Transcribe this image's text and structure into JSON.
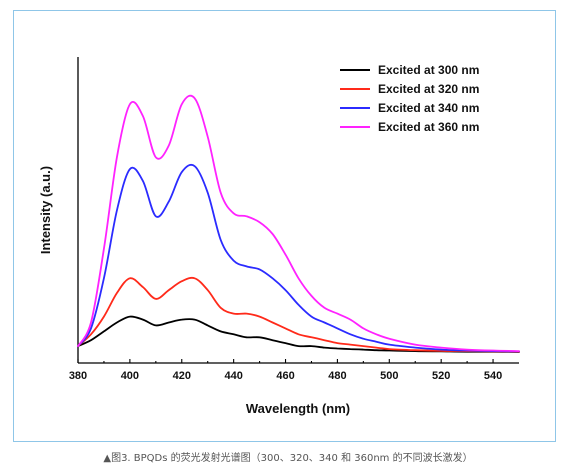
{
  "caption": "▲图3. BPQDs 的荧光发射光谱图（300、320、340 和 360nm 的不同波长激发）",
  "chart_data": {
    "type": "line",
    "title": "",
    "xlabel": "Wavelength (nm)",
    "ylabel": "Intensity (a.u.)",
    "xlim": [
      380,
      550
    ],
    "ylim": [
      0,
      1
    ],
    "x_ticks": [
      380,
      400,
      420,
      440,
      460,
      480,
      500,
      520,
      540
    ],
    "y_ticks": [],
    "grid": false,
    "legend_position": "top-right",
    "x": [
      380,
      385,
      390,
      395,
      400,
      405,
      410,
      415,
      420,
      425,
      430,
      435,
      440,
      445,
      450,
      455,
      460,
      465,
      470,
      475,
      480,
      485,
      490,
      495,
      500,
      510,
      520,
      530,
      540,
      550
    ],
    "series": [
      {
        "name": "Excited at 300 nm",
        "color": "#000000",
        "values": [
          0.02,
          0.04,
          0.07,
          0.1,
          0.12,
          0.11,
          0.09,
          0.1,
          0.11,
          0.11,
          0.09,
          0.07,
          0.06,
          0.05,
          0.05,
          0.04,
          0.03,
          0.02,
          0.02,
          0.015,
          0.012,
          0.01,
          0.008,
          0.006,
          0.005,
          0.003,
          0.002,
          0.001,
          0.001,
          0.0
        ]
      },
      {
        "name": "Excited at 320 nm",
        "color": "#ff2a1a",
        "values": [
          0.02,
          0.06,
          0.12,
          0.2,
          0.25,
          0.22,
          0.18,
          0.21,
          0.24,
          0.25,
          0.21,
          0.15,
          0.13,
          0.13,
          0.12,
          0.1,
          0.08,
          0.06,
          0.05,
          0.04,
          0.03,
          0.025,
          0.02,
          0.015,
          0.01,
          0.006,
          0.004,
          0.003,
          0.002,
          0.001
        ]
      },
      {
        "name": "Excited at 340 nm",
        "color": "#2b2bff",
        "values": [
          0.02,
          0.08,
          0.25,
          0.48,
          0.62,
          0.58,
          0.46,
          0.51,
          0.61,
          0.63,
          0.54,
          0.38,
          0.31,
          0.29,
          0.28,
          0.25,
          0.21,
          0.16,
          0.12,
          0.1,
          0.08,
          0.06,
          0.045,
          0.035,
          0.025,
          0.015,
          0.008,
          0.005,
          0.003,
          0.002
        ]
      },
      {
        "name": "Excited at 360 nm",
        "color": "#ff22ff",
        "values": [
          0.02,
          0.1,
          0.35,
          0.66,
          0.84,
          0.8,
          0.66,
          0.7,
          0.84,
          0.86,
          0.73,
          0.54,
          0.47,
          0.46,
          0.44,
          0.4,
          0.33,
          0.25,
          0.19,
          0.15,
          0.13,
          0.11,
          0.08,
          0.06,
          0.045,
          0.025,
          0.015,
          0.008,
          0.005,
          0.003
        ]
      }
    ]
  }
}
